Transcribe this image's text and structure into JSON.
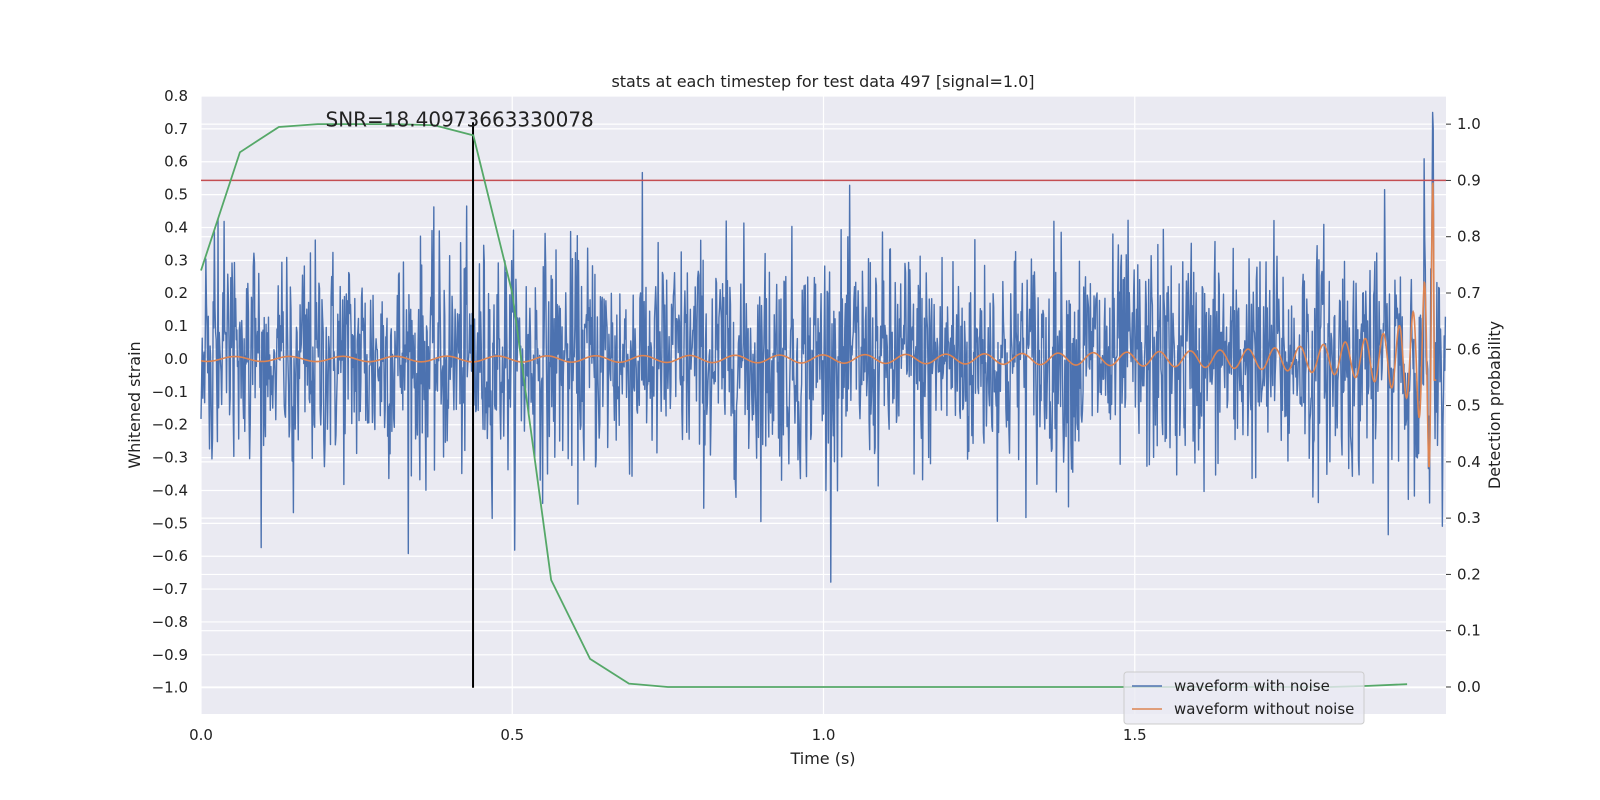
{
  "chart_data": {
    "type": "line",
    "title": "stats at each timestep for test data 497 [signal=1.0]",
    "xlabel": "Time (s)",
    "ylabel": "Whitened strain",
    "ylabel_right": "Detection probability",
    "xlim": [
      0.0,
      2.0
    ],
    "ylim": [
      -1.08,
      0.8
    ],
    "ylim_right": [
      -0.048,
      1.05
    ],
    "x_ticks": [
      0.0,
      0.5,
      1.0,
      1.5
    ],
    "x_tick_labels": [
      "0.0",
      "0.5",
      "1.0",
      "1.5"
    ],
    "y_ticks": [
      0.8,
      0.7,
      0.6,
      0.5,
      0.4,
      0.3,
      0.2,
      0.1,
      0.0,
      -0.1,
      -0.2,
      -0.3,
      -0.4,
      -0.5,
      -0.6,
      -0.7,
      -0.8,
      -0.9,
      -1.0
    ],
    "y_tick_labels": [
      "0.8",
      "0.7",
      "0.6",
      "0.5",
      "0.4",
      "0.3",
      "0.2",
      "0.1",
      "0.0",
      "−0.1",
      "−0.2",
      "−0.3",
      "−0.4",
      "−0.5",
      "−0.6",
      "−0.7",
      "−0.8",
      "−0.9",
      "−1.0"
    ],
    "y_right_ticks": [
      1.0,
      0.9,
      0.8,
      0.7,
      0.6,
      0.5,
      0.4,
      0.3,
      0.2,
      0.1,
      0.0
    ],
    "y_right_tick_labels": [
      "1.0",
      "0.9",
      "0.8",
      "0.7",
      "0.6",
      "0.5",
      "0.4",
      "0.3",
      "0.2",
      "0.1",
      "0.0"
    ],
    "annotation": "SNR=18.40973663330078",
    "annotation_x": 0.2,
    "annotation_y": 0.72,
    "detection_time": 0.437,
    "threshold": 0.9,
    "grid": true,
    "legend_position": "lower-right",
    "series": [
      {
        "name": "waveform with noise",
        "color": "#4c72b0",
        "axis": "left",
        "samples": 2048,
        "amplitude_sigma": 0.17
      },
      {
        "name": "waveform without noise",
        "color": "#dd8452",
        "axis": "left"
      },
      {
        "name": "detection probability",
        "color": "#55a868",
        "axis": "right",
        "x": [
          0.0,
          0.0625,
          0.125,
          0.1875,
          0.25,
          0.3125,
          0.375,
          0.4375,
          0.5,
          0.5625,
          0.625,
          0.6875,
          0.75,
          0.8125,
          0.875,
          0.9375,
          1.0,
          1.0625,
          1.125,
          1.1875,
          1.25,
          1.3125,
          1.375,
          1.4375,
          1.5,
          1.5625,
          1.625,
          1.6875,
          1.75,
          1.8125,
          1.875,
          1.9375
        ],
        "values": [
          0.74,
          0.95,
          0.995,
          1.0,
          1.0,
          1.0,
          0.998,
          0.98,
          0.7,
          0.19,
          0.05,
          0.006,
          0.0,
          0.0,
          0.0,
          0.0,
          0.0,
          0.0,
          0.0,
          0.0,
          0.0,
          0.0,
          0.0,
          0.0,
          0.0,
          0.0,
          0.0,
          0.0,
          0.0,
          0.0,
          0.002,
          0.005
        ]
      },
      {
        "name": "threshold",
        "color": "#c44e52",
        "axis": "right"
      },
      {
        "name": "detection time",
        "color": "#000000",
        "axis": "left"
      }
    ],
    "legend": [
      "waveform with noise",
      "waveform without noise"
    ]
  }
}
